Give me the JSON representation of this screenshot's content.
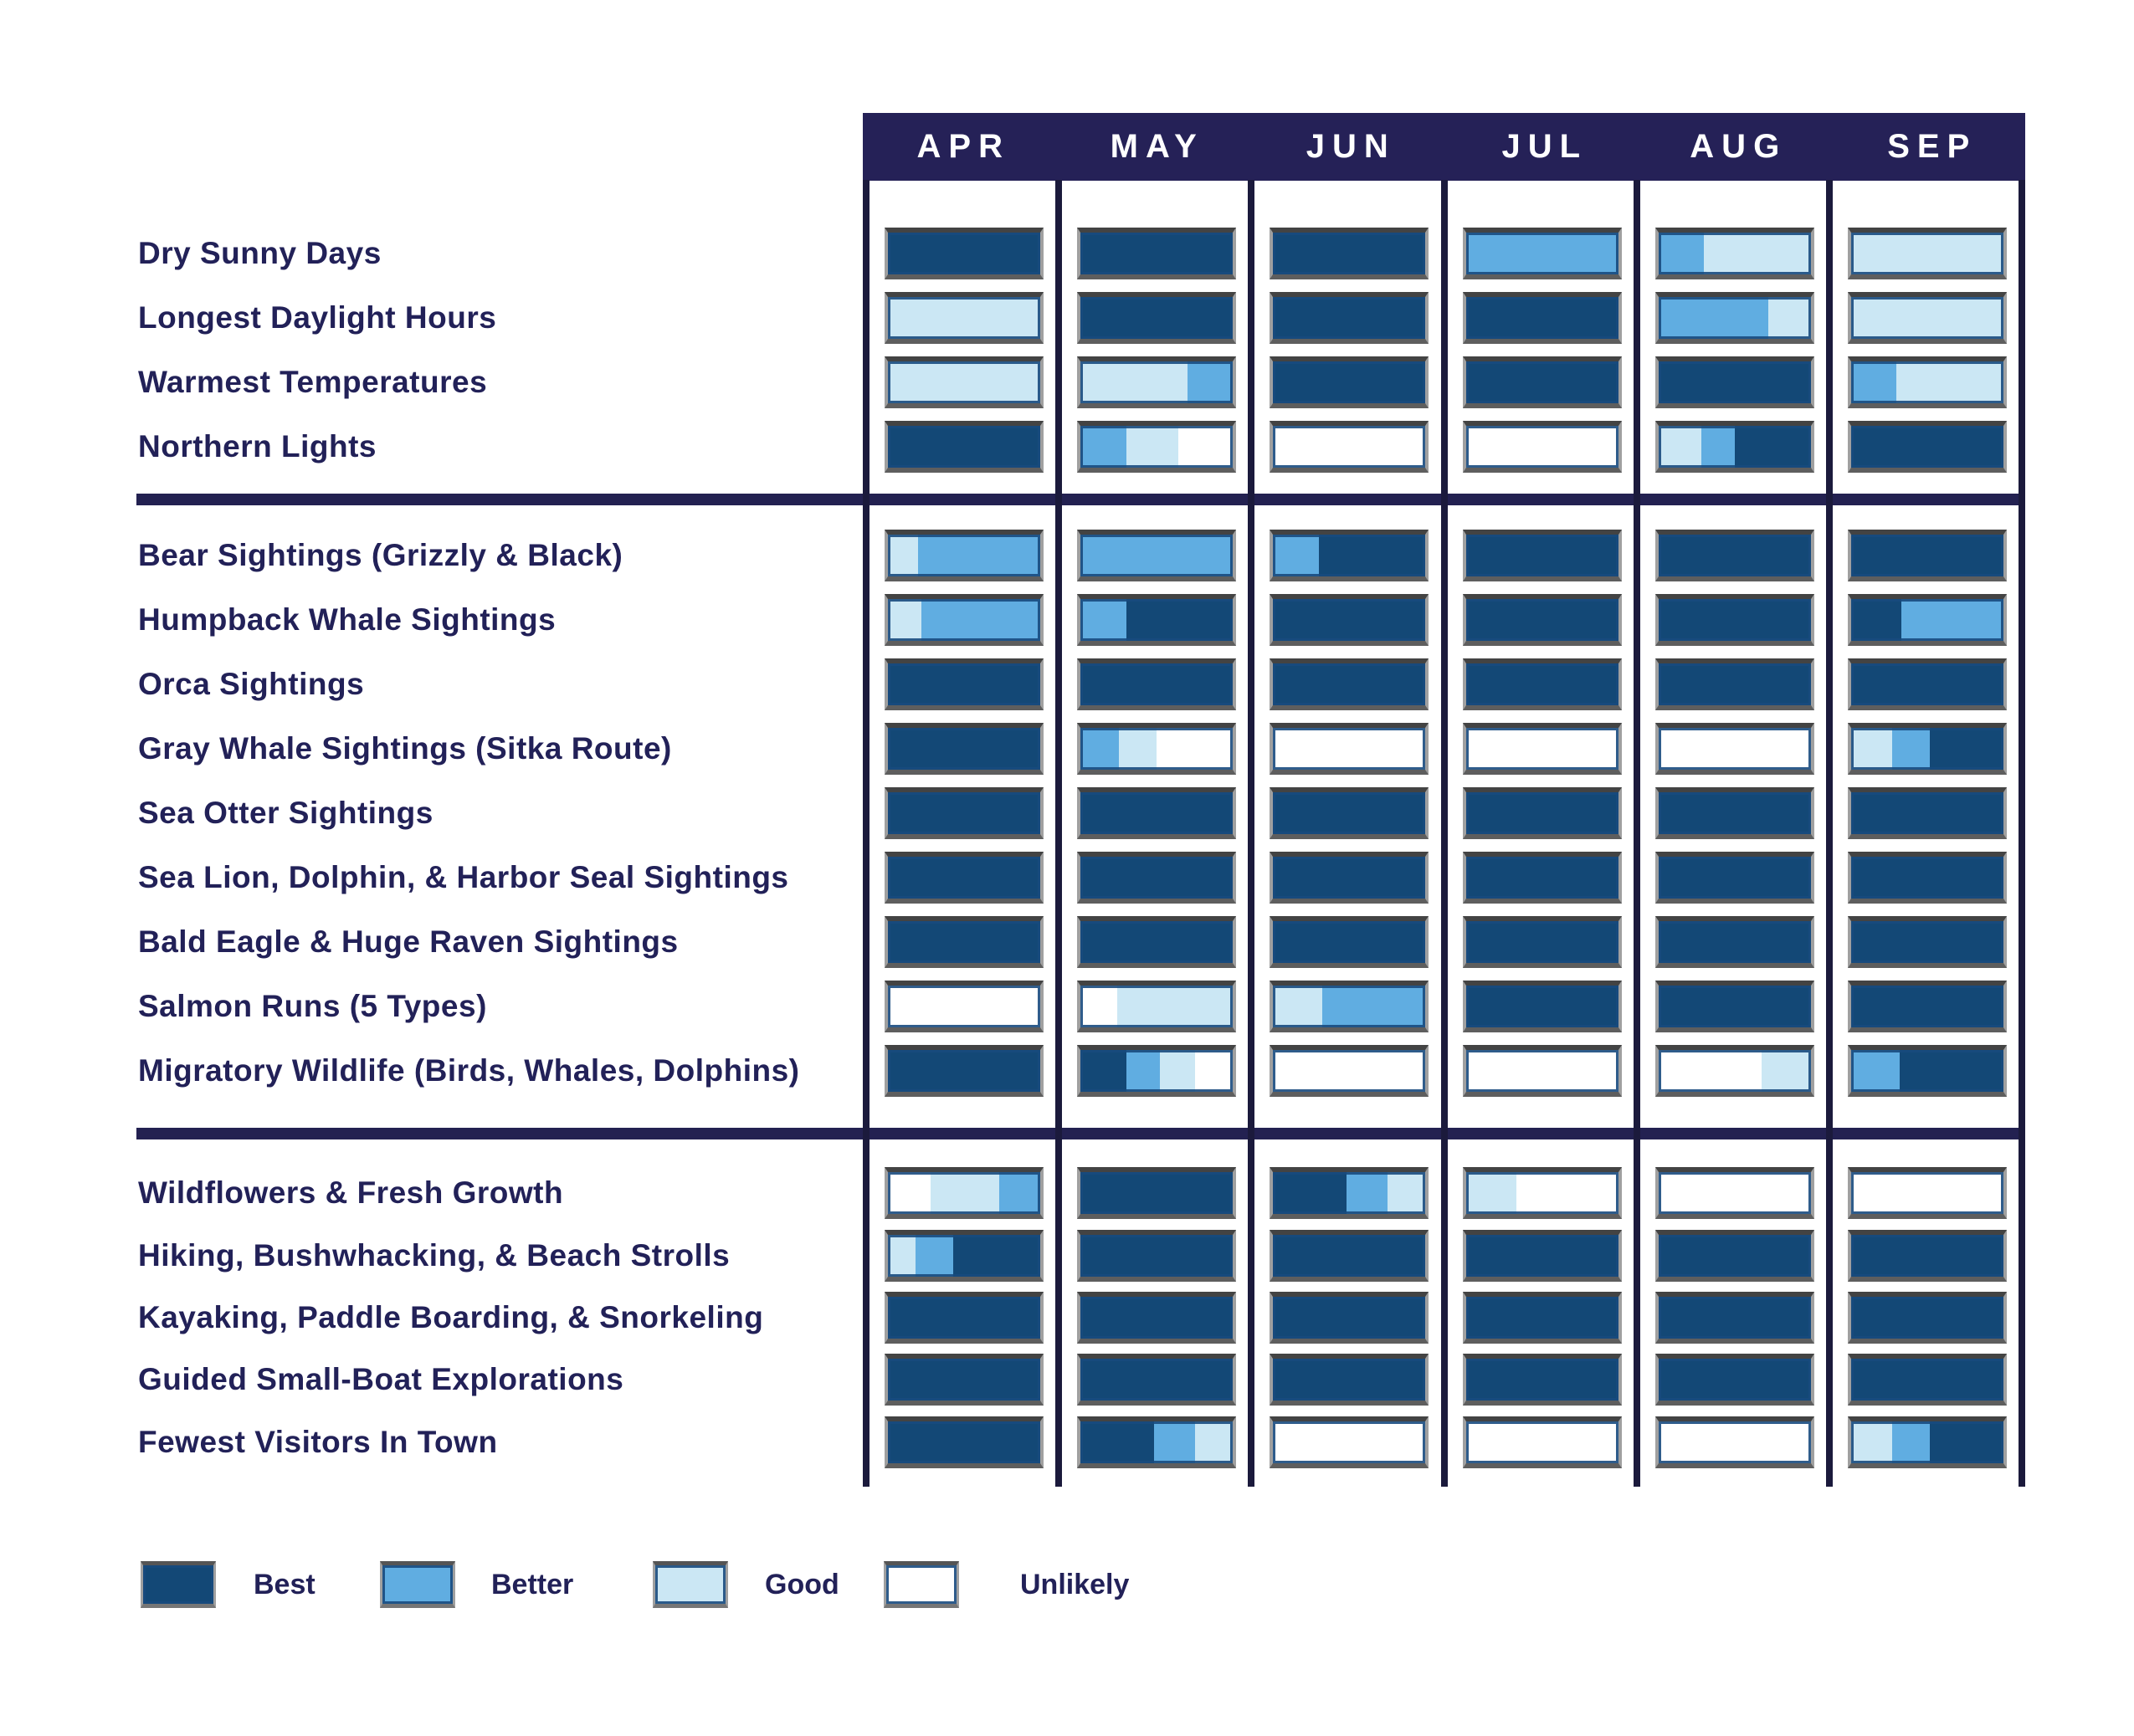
{
  "header": {
    "months": [
      "APR",
      "MAY",
      "JUN",
      "JUL",
      "AUG",
      "SEP"
    ]
  },
  "legend": {
    "items": [
      {
        "key": "best",
        "label": "Best",
        "color": "#134876"
      },
      {
        "key": "better",
        "label": "Better",
        "color": "#60ade1"
      },
      {
        "key": "good",
        "label": "Good",
        "color": "#cbe7f4"
      },
      {
        "key": "unlikely",
        "label": "Unlikely",
        "color": "#ffffff"
      }
    ]
  },
  "colors": {
    "best": "#134876",
    "better": "#60ade1",
    "good": "#cbe7f4",
    "unlikely": "#ffffff",
    "header_bg": "#252157",
    "grid_line": "#1b1a3c",
    "label_text": "#222158"
  },
  "chart_data": {
    "type": "heatmap",
    "title": "",
    "columns": [
      "APR",
      "MAY",
      "JUN",
      "JUL",
      "AUG",
      "SEP"
    ],
    "levels": [
      "Best",
      "Better",
      "Good",
      "Unlikely"
    ],
    "legend_position": "bottom-left",
    "sections": [
      {
        "rows": [
          {
            "label": "Dry Sunny Days",
            "cells": [
              [
                [
                  "best",
                  100
                ]
              ],
              [
                [
                  "best",
                  100
                ]
              ],
              [
                [
                  "best",
                  100
                ]
              ],
              [
                [
                  "better",
                  100
                ]
              ],
              [
                [
                  "better",
                  30
                ],
                [
                  "good",
                  70
                ]
              ],
              [
                [
                  "good",
                  100
                ]
              ]
            ]
          },
          {
            "label": "Longest Daylight Hours",
            "cells": [
              [
                [
                  "good",
                  100
                ]
              ],
              [
                [
                  "best",
                  100
                ]
              ],
              [
                [
                  "best",
                  100
                ]
              ],
              [
                [
                  "best",
                  100
                ]
              ],
              [
                [
                  "better",
                  72
                ],
                [
                  "good",
                  28
                ]
              ],
              [
                [
                  "good",
                  100
                ]
              ]
            ]
          },
          {
            "label": "Warmest Temperatures",
            "cells": [
              [
                [
                  "good",
                  100
                ]
              ],
              [
                [
                  "good",
                  70
                ],
                [
                  "better",
                  30
                ]
              ],
              [
                [
                  "best",
                  100
                ]
              ],
              [
                [
                  "best",
                  100
                ]
              ],
              [
                [
                  "best",
                  100
                ]
              ],
              [
                [
                  "better",
                  30
                ],
                [
                  "good",
                  70
                ]
              ]
            ]
          },
          {
            "label": "Northern Lights",
            "cells": [
              [
                [
                  "best",
                  100
                ]
              ],
              [
                [
                  "better",
                  30
                ],
                [
                  "good",
                  34
                ],
                [
                  "unlikely",
                  36
                ]
              ],
              [
                [
                  "unlikely",
                  100
                ]
              ],
              [
                [
                  "unlikely",
                  100
                ]
              ],
              [
                [
                  "good",
                  28
                ],
                [
                  "better",
                  22
                ],
                [
                  "best",
                  50
                ]
              ],
              [
                [
                  "best",
                  100
                ]
              ]
            ]
          }
        ]
      },
      {
        "rows": [
          {
            "label": "Bear Sightings (Grizzly & Black)",
            "cells": [
              [
                [
                  "good",
                  20
                ],
                [
                  "better",
                  80
                ]
              ],
              [
                [
                  "better",
                  100
                ]
              ],
              [
                [
                  "better",
                  30
                ],
                [
                  "best",
                  70
                ]
              ],
              [
                [
                  "best",
                  100
                ]
              ],
              [
                [
                  "best",
                  100
                ]
              ],
              [
                [
                  "best",
                  100
                ]
              ]
            ]
          },
          {
            "label": "Humpback Whale Sightings",
            "cells": [
              [
                [
                  "good",
                  22
                ],
                [
                  "better",
                  78
                ]
              ],
              [
                [
                  "better",
                  30
                ],
                [
                  "best",
                  70
                ]
              ],
              [
                [
                  "best",
                  100
                ]
              ],
              [
                [
                  "best",
                  100
                ]
              ],
              [
                [
                  "best",
                  100
                ]
              ],
              [
                [
                  "best",
                  33
                ],
                [
                  "better",
                  67
                ]
              ]
            ]
          },
          {
            "label": "Orca Sightings",
            "cells": [
              [
                [
                  "best",
                  100
                ]
              ],
              [
                [
                  "best",
                  100
                ]
              ],
              [
                [
                  "best",
                  100
                ]
              ],
              [
                [
                  "best",
                  100
                ]
              ],
              [
                [
                  "best",
                  100
                ]
              ],
              [
                [
                  "best",
                  100
                ]
              ]
            ]
          },
          {
            "label": "Gray Whale Sightings (Sitka Route)",
            "cells": [
              [
                [
                  "best",
                  100
                ]
              ],
              [
                [
                  "better",
                  25
                ],
                [
                  "good",
                  25
                ],
                [
                  "unlikely",
                  50
                ]
              ],
              [
                [
                  "unlikely",
                  100
                ]
              ],
              [
                [
                  "unlikely",
                  100
                ]
              ],
              [
                [
                  "unlikely",
                  100
                ]
              ],
              [
                [
                  "good",
                  27
                ],
                [
                  "better",
                  25
                ],
                [
                  "best",
                  48
                ]
              ]
            ]
          },
          {
            "label": "Sea Otter Sightings",
            "cells": [
              [
                [
                  "best",
                  100
                ]
              ],
              [
                [
                  "best",
                  100
                ]
              ],
              [
                [
                  "best",
                  100
                ]
              ],
              [
                [
                  "best",
                  100
                ]
              ],
              [
                [
                  "best",
                  100
                ]
              ],
              [
                [
                  "best",
                  100
                ]
              ]
            ]
          },
          {
            "label": "Sea Lion, Dolphin, & Harbor Seal Sightings",
            "cells": [
              [
                [
                  "best",
                  100
                ]
              ],
              [
                [
                  "best",
                  100
                ]
              ],
              [
                [
                  "best",
                  100
                ]
              ],
              [
                [
                  "best",
                  100
                ]
              ],
              [
                [
                  "best",
                  100
                ]
              ],
              [
                [
                  "best",
                  100
                ]
              ]
            ]
          },
          {
            "label": "Bald Eagle & Huge Raven Sightings",
            "cells": [
              [
                [
                  "best",
                  100
                ]
              ],
              [
                [
                  "best",
                  100
                ]
              ],
              [
                [
                  "best",
                  100
                ]
              ],
              [
                [
                  "best",
                  100
                ]
              ],
              [
                [
                  "best",
                  100
                ]
              ],
              [
                [
                  "best",
                  100
                ]
              ]
            ]
          },
          {
            "label": "Salmon Runs (5 Types)",
            "cells": [
              [
                [
                  "unlikely",
                  100
                ]
              ],
              [
                [
                  "unlikely",
                  24
                ],
                [
                  "good",
                  76
                ]
              ],
              [
                [
                  "good",
                  32
                ],
                [
                  "better",
                  68
                ]
              ],
              [
                [
                  "best",
                  100
                ]
              ],
              [
                [
                  "best",
                  100
                ]
              ],
              [
                [
                  "best",
                  100
                ]
              ]
            ]
          },
          {
            "label": "Migratory Wildlife (Birds, Whales, Dolphins)",
            "cells": [
              [
                [
                  "best",
                  100
                ]
              ],
              [
                [
                  "best",
                  30
                ],
                [
                  "better",
                  22
                ],
                [
                  "good",
                  23
                ],
                [
                  "unlikely",
                  25
                ]
              ],
              [
                [
                  "unlikely",
                  100
                ]
              ],
              [
                [
                  "unlikely",
                  100
                ]
              ],
              [
                [
                  "unlikely",
                  68
                ],
                [
                  "good",
                  32
                ]
              ],
              [
                [
                  "better",
                  32
                ],
                [
                  "best",
                  68
                ]
              ]
            ]
          }
        ]
      },
      {
        "rows": [
          {
            "label": "Wildflowers & Fresh Growth",
            "cells": [
              [
                [
                  "unlikely",
                  28
                ],
                [
                  "good",
                  45
                ],
                [
                  "better",
                  27
                ]
              ],
              [
                [
                  "best",
                  100
                ]
              ],
              [
                [
                  "best",
                  48
                ],
                [
                  "better",
                  27
                ],
                [
                  "good",
                  25
                ]
              ],
              [
                [
                  "good",
                  33
                ],
                [
                  "unlikely",
                  67
                ]
              ],
              [
                [
                  "unlikely",
                  100
                ]
              ],
              [
                [
                  "unlikely",
                  100
                ]
              ]
            ]
          },
          {
            "label": "Hiking, Bushwhacking, & Beach Strolls",
            "cells": [
              [
                [
                  "good",
                  18
                ],
                [
                  "better",
                  25
                ],
                [
                  "best",
                  57
                ]
              ],
              [
                [
                  "best",
                  100
                ]
              ],
              [
                [
                  "best",
                  100
                ]
              ],
              [
                [
                  "best",
                  100
                ]
              ],
              [
                [
                  "best",
                  100
                ]
              ],
              [
                [
                  "best",
                  100
                ]
              ]
            ]
          },
          {
            "label": "Kayaking, Paddle Boarding, & Snorkeling",
            "cells": [
              [
                [
                  "best",
                  100
                ]
              ],
              [
                [
                  "best",
                  100
                ]
              ],
              [
                [
                  "best",
                  100
                ]
              ],
              [
                [
                  "best",
                  100
                ]
              ],
              [
                [
                  "best",
                  100
                ]
              ],
              [
                [
                  "best",
                  100
                ]
              ]
            ]
          },
          {
            "label": "Guided Small-Boat Explorations",
            "cells": [
              [
                [
                  "best",
                  100
                ]
              ],
              [
                [
                  "best",
                  100
                ]
              ],
              [
                [
                  "best",
                  100
                ]
              ],
              [
                [
                  "best",
                  100
                ]
              ],
              [
                [
                  "best",
                  100
                ]
              ],
              [
                [
                  "best",
                  100
                ]
              ]
            ]
          },
          {
            "label": "Fewest Visitors In Town",
            "cells": [
              [
                [
                  "best",
                  100
                ]
              ],
              [
                [
                  "best",
                  48
                ],
                [
                  "better",
                  27
                ],
                [
                  "good",
                  25
                ]
              ],
              [
                [
                  "unlikely",
                  100
                ]
              ],
              [
                [
                  "unlikely",
                  100
                ]
              ],
              [
                [
                  "unlikely",
                  100
                ]
              ],
              [
                [
                  "good",
                  27
                ],
                [
                  "better",
                  25
                ],
                [
                  "best",
                  48
                ]
              ]
            ]
          }
        ]
      }
    ]
  }
}
